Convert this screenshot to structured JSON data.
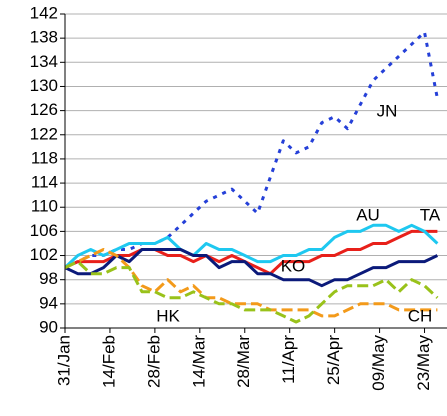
{
  "chart_data": {
    "type": "line",
    "x": [
      "31/Jan",
      "04/Feb",
      "08/Feb",
      "12/Feb",
      "16/Feb",
      "20/Feb",
      "24/Feb",
      "28/Feb",
      "04/Mar",
      "08/Mar",
      "12/Mar",
      "16/Mar",
      "20/Mar",
      "24/Mar",
      "28/Mar",
      "01/Apr",
      "05/Apr",
      "09/Apr",
      "13/Apr",
      "17/Apr",
      "21/Apr",
      "25/Apr",
      "29/Apr",
      "03/May",
      "07/May",
      "11/May",
      "15/May",
      "19/May",
      "23/May",
      "27/May"
    ],
    "xlim": [
      "31/Jan",
      "30/May"
    ],
    "xticks": [
      "31/Jan",
      "14/Feb",
      "28/Feb",
      "14/Mar",
      "28/Mar",
      "11/Apr",
      "25/Apr",
      "09/May",
      "23/May"
    ],
    "ylim": [
      90,
      142
    ],
    "yticks": [
      90,
      94,
      98,
      102,
      106,
      110,
      114,
      118,
      122,
      126,
      130,
      134,
      138,
      142
    ],
    "grid": true,
    "series": [
      {
        "name": "JN",
        "color": "#2540d8",
        "style": "dotted",
        "values": [
          100,
          101,
          102,
          102,
          103,
          103,
          104,
          104,
          105,
          107,
          109,
          111,
          112,
          113,
          111,
          109,
          115,
          121,
          119,
          120,
          124,
          125,
          123,
          127,
          131,
          133,
          135,
          137,
          139,
          128
        ]
      },
      {
        "name": "AU",
        "color": "#e8201a",
        "style": "solid",
        "values": [
          100,
          101,
          101,
          101,
          102,
          102,
          103,
          103,
          102,
          102,
          101,
          102,
          101,
          102,
          101,
          100,
          99,
          101,
          101,
          101,
          102,
          102,
          103,
          103,
          104,
          104,
          105,
          106,
          106,
          106
        ]
      },
      {
        "name": "TA",
        "color": "#1ec8f0",
        "style": "solid",
        "values": [
          100,
          102,
          103,
          102,
          103,
          104,
          104,
          104,
          105,
          103,
          102,
          104,
          103,
          103,
          102,
          101,
          101,
          102,
          102,
          103,
          103,
          105,
          106,
          106,
          107,
          107,
          106,
          107,
          106,
          104
        ]
      },
      {
        "name": "KO",
        "color": "#0b1a7a",
        "style": "solid",
        "values": [
          100,
          99,
          99,
          100,
          102,
          101,
          103,
          103,
          103,
          103,
          102,
          102,
          100,
          101,
          101,
          99,
          99,
          98,
          98,
          98,
          97,
          98,
          98,
          99,
          100,
          100,
          101,
          101,
          101,
          102
        ]
      },
      {
        "name": "HK",
        "color": "#f39a1a",
        "style": "dashed",
        "values": [
          100,
          101,
          102,
          103,
          102,
          100,
          97,
          96,
          98,
          96,
          97,
          95,
          95,
          94,
          94,
          94,
          93,
          93,
          93,
          93,
          92,
          92,
          93,
          94,
          94,
          94,
          93,
          93,
          93,
          93
        ]
      },
      {
        "name": "CH",
        "color": "#99c21a",
        "style": "dashed",
        "values": [
          100,
          101,
          99,
          99,
          100,
          100,
          96,
          96,
          95,
          95,
          96,
          95,
          94,
          94,
          93,
          93,
          93,
          92,
          91,
          92,
          94,
          96,
          97,
          97,
          97,
          98,
          96,
          98,
          97,
          95
        ]
      }
    ]
  }
}
